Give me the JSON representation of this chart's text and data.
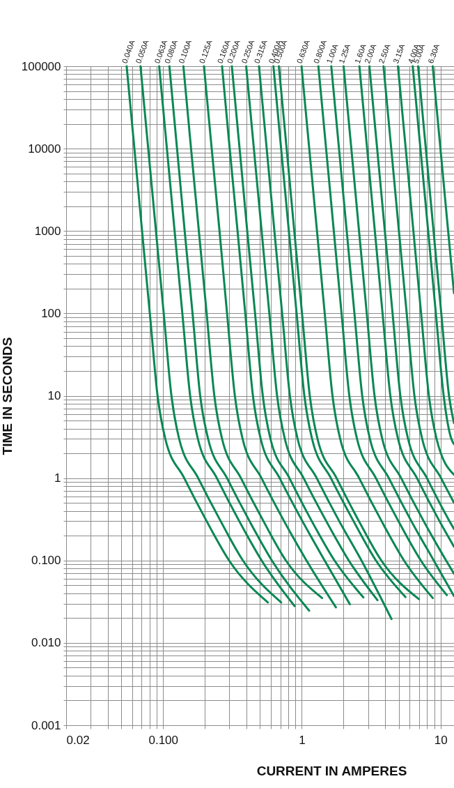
{
  "chart_data": {
    "type": "line",
    "xlabel": "CURRENT IN AMPERES",
    "ylabel": "TIME IN SECONDS",
    "log": "xy",
    "grid": true,
    "legend": false,
    "marker": "none",
    "line_style": "solid",
    "xlim": [
      0.02,
      12.5
    ],
    "ylim": [
      0.001,
      100000
    ],
    "xticks": [
      0.02,
      {
        "value": 0.03,
        "label": null
      },
      {
        "value": 0.04,
        "label": null
      },
      {
        "value": 0.05,
        "label": null
      },
      {
        "value": 0.06,
        "label": null
      },
      {
        "value": 0.07,
        "label": null
      },
      {
        "value": 0.08,
        "label": null
      },
      {
        "value": 0.09,
        "label": null
      },
      {
        "value": 0.1,
        "label": "0.100"
      },
      {
        "value": 0.2,
        "label": null
      },
      {
        "value": 0.3,
        "label": null
      },
      {
        "value": 0.4,
        "label": null
      },
      {
        "value": 0.5,
        "label": null
      },
      {
        "value": 0.6,
        "label": null
      },
      {
        "value": 0.7,
        "label": null
      },
      {
        "value": 0.8,
        "label": null
      },
      {
        "value": 0.9,
        "label": null
      },
      1,
      {
        "value": 2,
        "label": null
      },
      {
        "value": 3,
        "label": null
      },
      {
        "value": 4,
        "label": null
      },
      {
        "value": 5,
        "label": null
      },
      {
        "value": 6,
        "label": null
      },
      {
        "value": 7,
        "label": null
      },
      {
        "value": 8,
        "label": null
      },
      {
        "value": 9,
        "label": null
      },
      10
    ],
    "yticks": [
      0.001,
      {
        "value": 0.002,
        "label": null
      },
      {
        "value": 0.003,
        "label": null
      },
      {
        "value": 0.004,
        "label": null
      },
      {
        "value": 0.005,
        "label": null
      },
      {
        "value": 0.006,
        "label": null
      },
      {
        "value": 0.007,
        "label": null
      },
      {
        "value": 0.008,
        "label": null
      },
      {
        "value": 0.009,
        "label": null
      },
      {
        "value": 0.01,
        "label": "0.010"
      },
      {
        "value": 0.02,
        "label": null
      },
      {
        "value": 0.03,
        "label": null
      },
      {
        "value": 0.04,
        "label": null
      },
      {
        "value": 0.05,
        "label": null
      },
      {
        "value": 0.06,
        "label": null
      },
      {
        "value": 0.07,
        "label": null
      },
      {
        "value": 0.08,
        "label": null
      },
      {
        "value": 0.09,
        "label": null
      },
      {
        "value": 0.1,
        "label": "0.100"
      },
      {
        "value": 0.2,
        "label": null
      },
      {
        "value": 0.3,
        "label": null
      },
      {
        "value": 0.4,
        "label": null
      },
      {
        "value": 0.5,
        "label": null
      },
      {
        "value": 0.6,
        "label": null
      },
      {
        "value": 0.7,
        "label": null
      },
      {
        "value": 0.8,
        "label": null
      },
      {
        "value": 0.9,
        "label": null
      },
      1,
      {
        "value": 2,
        "label": null
      },
      {
        "value": 3,
        "label": null
      },
      {
        "value": 4,
        "label": null
      },
      {
        "value": 5,
        "label": null
      },
      {
        "value": 6,
        "label": null
      },
      {
        "value": 7,
        "label": null
      },
      {
        "value": 8,
        "label": null
      },
      {
        "value": 9,
        "label": null
      },
      10,
      {
        "value": 20,
        "label": null
      },
      {
        "value": 30,
        "label": null
      },
      {
        "value": 40,
        "label": null
      },
      {
        "value": 50,
        "label": null
      },
      {
        "value": 60,
        "label": null
      },
      {
        "value": 70,
        "label": null
      },
      {
        "value": 80,
        "label": null
      },
      {
        "value": 90,
        "label": null
      },
      100,
      {
        "value": 200,
        "label": null
      },
      {
        "value": 300,
        "label": null
      },
      {
        "value": 400,
        "label": null
      },
      {
        "value": 500,
        "label": null
      },
      {
        "value": 600,
        "label": null
      },
      {
        "value": 700,
        "label": null
      },
      {
        "value": 800,
        "label": null
      },
      {
        "value": 900,
        "label": null
      },
      1000,
      {
        "value": 2000,
        "label": null
      },
      {
        "value": 3000,
        "label": null
      },
      {
        "value": 4000,
        "label": null
      },
      {
        "value": 5000,
        "label": null
      },
      {
        "value": 6000,
        "label": null
      },
      {
        "value": 7000,
        "label": null
      },
      {
        "value": 8000,
        "label": null
      },
      {
        "value": 9000,
        "label": null
      },
      10000,
      {
        "value": 20000,
        "label": null
      },
      {
        "value": 30000,
        "label": null
      },
      {
        "value": 40000,
        "label": null
      },
      {
        "value": 50000,
        "label": null
      },
      {
        "value": 60000,
        "label": null
      },
      {
        "value": 70000,
        "label": null
      },
      {
        "value": 80000,
        "label": null
      },
      {
        "value": 90000,
        "label": null
      },
      100000
    ],
    "series": [
      {
        "name": "0.040A",
        "color": "#0a8754",
        "x": [
          0.0546,
          0.0621,
          0.0705,
          0.0802,
          0.0912,
          0.1037,
          0.142,
          0.206,
          0.299,
          0.569
        ],
        "values": [
          100000,
          10000,
          1000,
          100,
          10,
          3,
          1,
          0.3,
          0.1,
          0.031
        ]
      },
      {
        "name": "0.050A",
        "color": "#0a8754",
        "x": [
          0.0687,
          0.0781,
          0.0888,
          0.101,
          0.1148,
          0.1305,
          0.179,
          0.26,
          0.376,
          0.71
        ],
        "values": [
          100000,
          10000,
          1000,
          100,
          10,
          3,
          1,
          0.3,
          0.1,
          0.031
        ]
      },
      {
        "name": "0.063A",
        "color": "#0a8754",
        "x": [
          0.0937,
          0.1065,
          0.121,
          0.1376,
          0.1566,
          0.178,
          0.244,
          0.354,
          0.513,
          0.886
        ],
        "values": [
          100000,
          10000,
          1000,
          100,
          10,
          3,
          1,
          0.3,
          0.1,
          0.028
        ]
      },
      {
        "name": "0.080A",
        "color": "#0a8754",
        "x": [
          0.111,
          0.126,
          0.143,
          0.163,
          0.185,
          0.211,
          0.289,
          0.42,
          0.608,
          1.13
        ],
        "values": [
          100000,
          10000,
          1000,
          100,
          10,
          3,
          1,
          0.3,
          0.1,
          0.0246
        ]
      },
      {
        "name": "0.100A",
        "color": "#0a8754",
        "x": [
          0.14,
          0.159,
          0.181,
          0.206,
          0.234,
          0.266,
          0.364,
          0.529,
          0.767,
          1.4
        ],
        "values": [
          100000,
          10000,
          1000,
          100,
          10,
          3,
          1,
          0.3,
          0.1,
          0.035
        ]
      },
      {
        "name": "0.125A",
        "color": "#0a8754",
        "x": [
          0.197,
          0.224,
          0.255,
          0.289,
          0.329,
          0.374,
          0.512,
          0.745,
          1.08,
          1.76
        ],
        "values": [
          100000,
          10000,
          1000,
          100,
          10,
          3,
          1,
          0.3,
          0.1,
          0.027
        ]
      },
      {
        "name": "0.160A",
        "color": "#0a8754",
        "x": [
          0.266,
          0.302,
          0.344,
          0.391,
          0.444,
          0.505,
          0.692,
          1.01,
          1.46,
          2.22
        ],
        "values": [
          100000,
          10000,
          1000,
          100,
          10,
          3,
          1,
          0.3,
          0.1,
          0.0295
        ]
      },
      {
        "name": "0.200A",
        "color": "#0a8754",
        "x": [
          0.313,
          0.356,
          0.404,
          0.46,
          0.523,
          0.594,
          0.814,
          1.18,
          1.72,
          2.78
        ],
        "values": [
          100000,
          10000,
          1000,
          100,
          10,
          3,
          1,
          0.3,
          0.1,
          0.0356
        ]
      },
      {
        "name": "0.250A",
        "color": "#0a8754",
        "x": [
          0.397,
          0.451,
          0.513,
          0.583,
          0.663,
          0.754,
          1.03,
          1.5,
          2.18,
          3.51
        ],
        "values": [
          100000,
          10000,
          1000,
          100,
          10,
          3,
          1,
          0.3,
          0.1,
          0.033
        ]
      },
      {
        "name": "0.315A",
        "color": "#0a8754",
        "x": [
          0.491,
          0.558,
          0.634,
          0.721,
          0.82,
          0.932,
          1.28,
          1.86,
          2.69,
          4.43
        ],
        "values": [
          100000,
          10000,
          1000,
          100,
          10,
          3,
          1,
          0.3,
          0.1,
          0.0195
        ]
      },
      {
        "name": "0.400A",
        "color": "#0a8754",
        "x": [
          0.624,
          0.709,
          0.806,
          0.917,
          1.043,
          1.185,
          1.62,
          2.36,
          3.42,
          5.59
        ],
        "values": [
          100000,
          10000,
          1000,
          100,
          10,
          3,
          1,
          0.3,
          0.1,
          0.036
        ]
      },
      {
        "name": "0.500A",
        "color": "#0a8754",
        "x": [
          0.683,
          0.777,
          0.882,
          1.003,
          1.141,
          1.297,
          1.78,
          2.58,
          3.74,
          6.98
        ],
        "values": [
          100000,
          10000,
          1000,
          100,
          10,
          3,
          1,
          0.3,
          0.1,
          0.034
        ]
      },
      {
        "name": "0.630A",
        "color": "#0a8754",
        "x": [
          0.995,
          1.131,
          1.286,
          1.462,
          1.663,
          1.89,
          2.59,
          3.76,
          5.45,
          8.79
        ],
        "values": [
          100000,
          10000,
          1000,
          100,
          10,
          3,
          1,
          0.3,
          0.1,
          0.035
        ]
      },
      {
        "name": "0.800A",
        "color": "#0a8754",
        "x": [
          1.316,
          1.496,
          1.7,
          1.933,
          2.199,
          2.499,
          3.42,
          4.97,
          7.21,
          11.1
        ],
        "values": [
          100000,
          10000,
          1000,
          100,
          10,
          3,
          1,
          0.3,
          0.1,
          0.038
        ]
      },
      {
        "name": "1.00A",
        "color": "#0a8754",
        "x": [
          1.63,
          1.853,
          2.106,
          2.394,
          2.724,
          3.095,
          4.24,
          6.16,
          8.93,
          12.5
        ],
        "values": [
          100000,
          10000,
          1000,
          100,
          10,
          3,
          1,
          0.3,
          0.1,
          0.037
        ]
      },
      {
        "name": "1.25A",
        "color": "#0a8754",
        "x": [
          2.0,
          2.274,
          2.584,
          2.938,
          3.342,
          3.798,
          5.2,
          7.56,
          10.96,
          12.5
        ],
        "values": [
          100000,
          10000,
          1000,
          100,
          10,
          3,
          1,
          0.3,
          0.1,
          0.069
        ]
      },
      {
        "name": "1.60A",
        "color": "#0a8754",
        "x": [
          2.6,
          2.956,
          3.359,
          3.819,
          4.345,
          4.937,
          6.76,
          9.83,
          12.5
        ],
        "values": [
          100000,
          10000,
          1000,
          100,
          10,
          3,
          1,
          0.3,
          0.147
        ]
      },
      {
        "name": "2.00A",
        "color": "#0a8754",
        "x": [
          3.07,
          3.491,
          3.966,
          4.51,
          5.13,
          5.83,
          7.98,
          11.6,
          12.5
        ],
        "values": [
          100000,
          10000,
          1000,
          100,
          10,
          3,
          1,
          0.3,
          0.241
        ]
      },
      {
        "name": "2.50A",
        "color": "#0a8754",
        "x": [
          3.88,
          4.41,
          5.01,
          5.7,
          6.48,
          7.37,
          10.09,
          12.5
        ],
        "values": [
          100000,
          10000,
          1000,
          100,
          10,
          3,
          1,
          0.502
        ]
      },
      {
        "name": "3.15A",
        "color": "#0a8754",
        "x": [
          4.93,
          5.61,
          6.37,
          7.24,
          8.24,
          9.36,
          12.5
        ],
        "values": [
          100000,
          10000,
          1000,
          100,
          10,
          3,
          1.1
        ]
      },
      {
        "name": "4.00A",
        "color": "#0a8754",
        "x": [
          6.3,
          7.16,
          8.14,
          9.25,
          10.53,
          11.96,
          12.5
        ],
        "values": [
          100000,
          10000,
          1000,
          100,
          10,
          3,
          2.58
        ]
      },
      {
        "name": "5.00A",
        "color": "#0a8754",
        "x": [
          6.89,
          7.83,
          8.9,
          10.12,
          11.51,
          12.5
        ],
        "values": [
          100000,
          10000,
          1000,
          100,
          10,
          4.65
        ]
      },
      {
        "name": "6.30A",
        "color": "#0a8754",
        "x": [
          8.78,
          9.98,
          11.34,
          12.5
        ],
        "values": [
          100000,
          10000,
          1000,
          176
        ]
      }
    ]
  }
}
